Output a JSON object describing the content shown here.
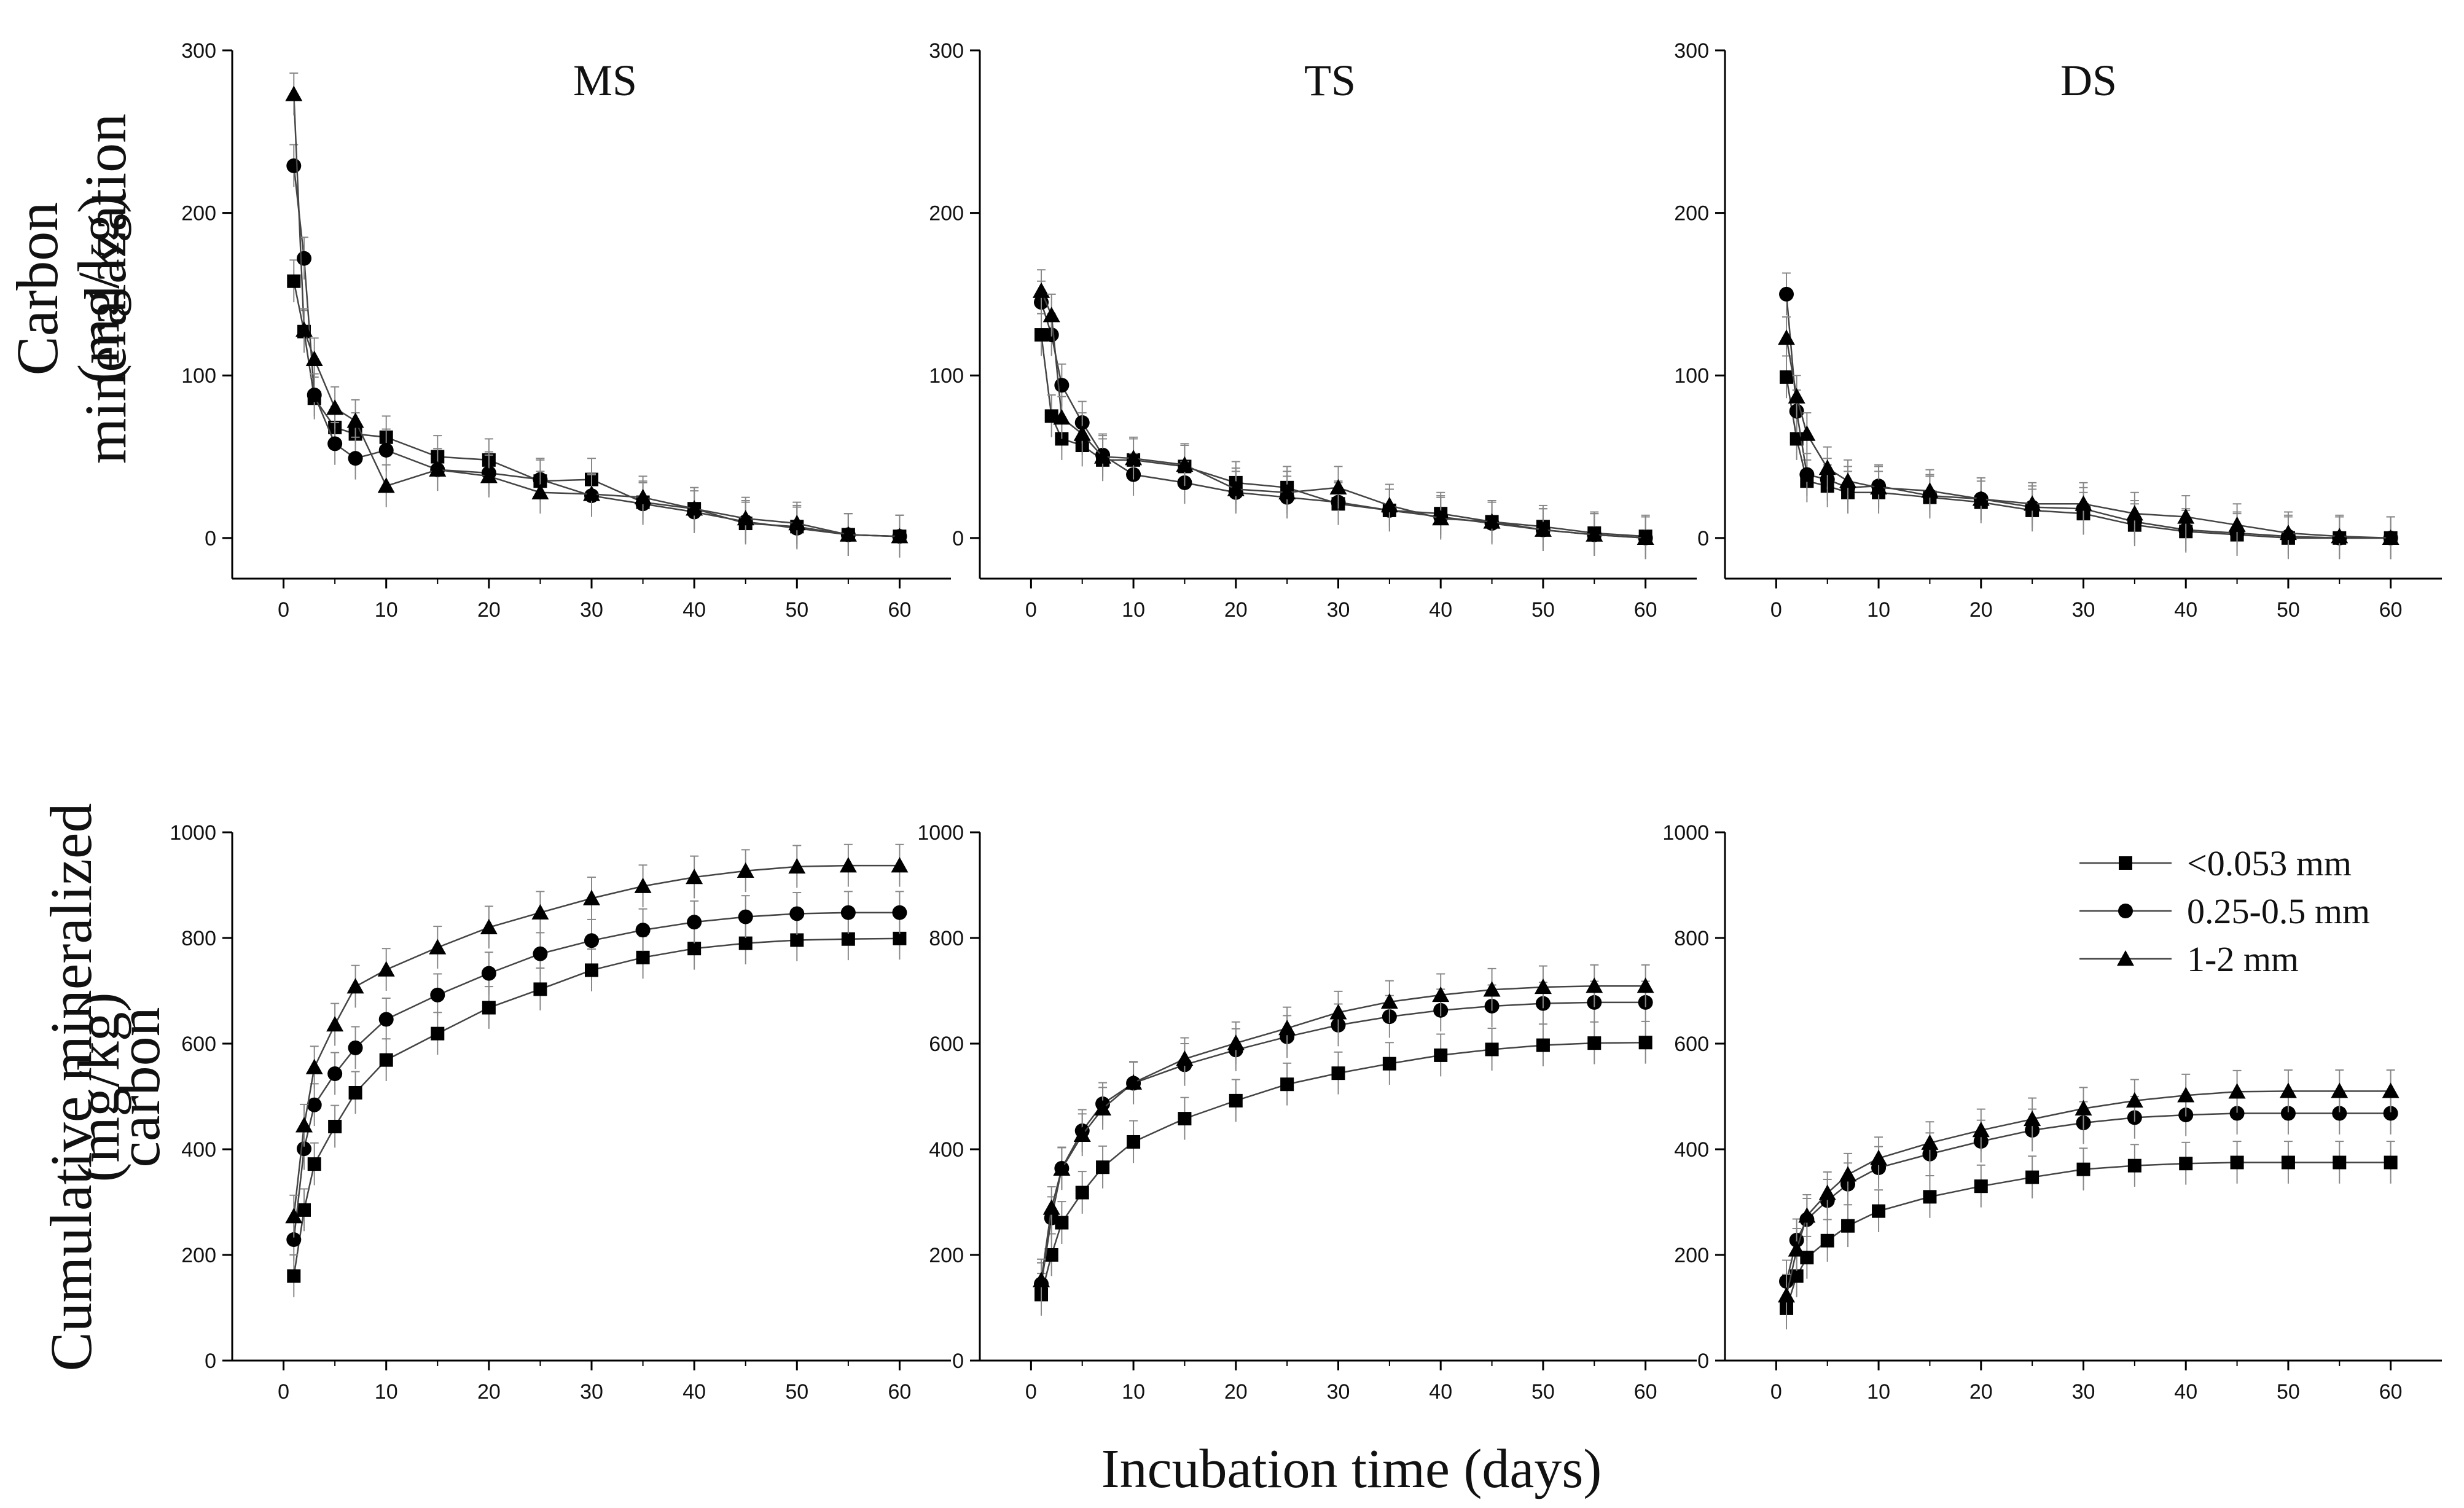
{
  "ylabel_top": [
    "Carbon mineralazation",
    "(mg/kg)"
  ],
  "ylabel_bottom": [
    "Cumulative mineralized carbon",
    "(mg/kg)"
  ],
  "xlabel": "Incubation time (days)",
  "legend": [
    "<0.053 mm",
    "0.25-0.5 mm",
    "1-2 mm"
  ],
  "chart_data": [
    {
      "type": "line",
      "title": "MS",
      "xlabel": "",
      "ylabel": "",
      "x": [
        1,
        2,
        3,
        5,
        7,
        10,
        15,
        20,
        25,
        30,
        35,
        40,
        45,
        50,
        55,
        60
      ],
      "xlim": [
        -5,
        65
      ],
      "ylim": [
        -25,
        300
      ],
      "xticks": [
        0,
        10,
        20,
        30,
        40,
        50,
        60
      ],
      "yticks": [
        0,
        100,
        200,
        300
      ],
      "series": [
        {
          "name": "<0.053 mm",
          "marker": "square",
          "values": [
            158,
            127,
            86,
            68,
            64,
            62,
            50,
            48,
            35,
            36,
            22,
            18,
            9,
            7,
            2,
            1
          ]
        },
        {
          "name": "0.25-0.5 mm",
          "marker": "circle",
          "values": [
            229,
            172,
            88,
            58,
            49,
            54,
            42,
            40,
            36,
            26,
            21,
            16,
            10,
            6,
            2,
            1
          ]
        },
        {
          "name": "1-2 mm",
          "marker": "triangle",
          "values": [
            273,
            128,
            110,
            80,
            72,
            32,
            42,
            38,
            28,
            27,
            25,
            18,
            12,
            9,
            2,
            1
          ]
        }
      ]
    },
    {
      "type": "line",
      "title": "TS",
      "xlabel": "",
      "ylabel": "",
      "x": [
        1,
        2,
        3,
        5,
        7,
        10,
        15,
        20,
        25,
        30,
        35,
        40,
        45,
        50,
        55,
        60
      ],
      "xlim": [
        -5,
        65
      ],
      "ylim": [
        -25,
        300
      ],
      "xticks": [
        0,
        10,
        20,
        30,
        40,
        50,
        60
      ],
      "yticks": [
        0,
        100,
        200,
        300
      ],
      "series": [
        {
          "name": "<0.053 mm",
          "marker": "square",
          "values": [
            125,
            75,
            61,
            57,
            48,
            48,
            44,
            34,
            31,
            21,
            17,
            15,
            10,
            7,
            3,
            1
          ]
        },
        {
          "name": "0.25-0.5 mm",
          "marker": "circle",
          "values": [
            145,
            125,
            94,
            71,
            51,
            39,
            34,
            28,
            25,
            22,
            17,
            13,
            9,
            5,
            2,
            0
          ]
        },
        {
          "name": "1-2 mm",
          "marker": "triangle",
          "values": [
            152,
            137,
            74,
            64,
            50,
            49,
            45,
            30,
            28,
            31,
            20,
            12,
            10,
            5,
            2,
            0
          ]
        }
      ]
    },
    {
      "type": "line",
      "title": "DS",
      "xlabel": "",
      "ylabel": "",
      "x": [
        1,
        2,
        3,
        5,
        7,
        10,
        15,
        20,
        25,
        30,
        35,
        40,
        45,
        50,
        55,
        60
      ],
      "xlim": [
        -5,
        65
      ],
      "ylim": [
        -25,
        300
      ],
      "xticks": [
        0,
        10,
        20,
        30,
        40,
        50,
        60
      ],
      "yticks": [
        0,
        100,
        200,
        300
      ],
      "series": [
        {
          "name": "<0.053 mm",
          "marker": "square",
          "values": [
            99,
            61,
            35,
            32,
            28,
            28,
            25,
            22,
            17,
            15,
            8,
            4,
            2,
            0,
            0,
            0
          ]
        },
        {
          "name": "0.25-0.5 mm",
          "marker": "circle",
          "values": [
            150,
            78,
            39,
            36,
            31,
            32,
            26,
            24,
            19,
            18,
            10,
            5,
            3,
            1,
            0,
            0
          ]
        },
        {
          "name": "1-2 mm",
          "marker": "triangle",
          "values": [
            123,
            87,
            64,
            43,
            35,
            31,
            29,
            24,
            21,
            21,
            15,
            13,
            8,
            3,
            1,
            0
          ]
        }
      ]
    },
    {
      "type": "line",
      "title": "",
      "xlabel": "",
      "ylabel": "",
      "x": [
        1,
        2,
        3,
        5,
        7,
        10,
        15,
        20,
        25,
        30,
        35,
        40,
        45,
        50,
        55,
        60
      ],
      "xlim": [
        -5,
        65
      ],
      "ylim": [
        0,
        1000
      ],
      "xticks": [
        0,
        10,
        20,
        30,
        40,
        50,
        60
      ],
      "yticks": [
        0,
        200,
        400,
        600,
        800,
        1000
      ],
      "series": [
        {
          "name": "<0.053 mm",
          "marker": "square",
          "values": [
            160,
            285,
            372,
            443,
            507,
            569,
            619,
            668,
            703,
            739,
            763,
            780,
            790,
            796,
            798,
            799
          ]
        },
        {
          "name": "0.25-0.5 mm",
          "marker": "circle",
          "values": [
            229,
            401,
            484,
            543,
            592,
            646,
            692,
            733,
            770,
            795,
            815,
            830,
            840,
            846,
            848,
            848
          ]
        },
        {
          "name": "1-2 mm",
          "marker": "triangle",
          "values": [
            273,
            445,
            555,
            636,
            708,
            740,
            782,
            820,
            848,
            875,
            898,
            915,
            927,
            935,
            937,
            937
          ]
        }
      ]
    },
    {
      "type": "line",
      "title": "",
      "xlabel": "",
      "ylabel": "",
      "x": [
        1,
        2,
        3,
        5,
        7,
        10,
        15,
        20,
        25,
        30,
        35,
        40,
        45,
        50,
        55,
        60
      ],
      "xlim": [
        -5,
        65
      ],
      "ylim": [
        0,
        1000
      ],
      "xticks": [
        0,
        10,
        20,
        30,
        40,
        50,
        60
      ],
      "yticks": [
        0,
        200,
        400,
        600,
        800,
        1000
      ],
      "series": [
        {
          "name": "<0.053 mm",
          "marker": "square",
          "values": [
            125,
            200,
            261,
            318,
            366,
            414,
            458,
            492,
            523,
            544,
            562,
            578,
            589,
            597,
            601,
            602
          ]
        },
        {
          "name": "0.25-0.5 mm",
          "marker": "circle",
          "values": [
            145,
            270,
            364,
            435,
            486,
            525,
            560,
            588,
            613,
            635,
            651,
            663,
            671,
            676,
            678,
            678
          ]
        },
        {
          "name": "1-2 mm",
          "marker": "triangle",
          "values": [
            152,
            289,
            363,
            427,
            477,
            526,
            571,
            601,
            629,
            659,
            679,
            692,
            702,
            707,
            709,
            709
          ]
        }
      ]
    },
    {
      "type": "line",
      "title": "",
      "xlabel": "",
      "ylabel": "",
      "x": [
        1,
        2,
        3,
        5,
        7,
        10,
        15,
        20,
        25,
        30,
        35,
        40,
        45,
        50,
        55,
        60
      ],
      "xlim": [
        -5,
        65
      ],
      "ylim": [
        0,
        1000
      ],
      "xticks": [
        0,
        10,
        20,
        30,
        40,
        50,
        60
      ],
      "yticks": [
        0,
        200,
        400,
        600,
        800,
        1000
      ],
      "series": [
        {
          "name": "<0.053 mm",
          "marker": "square",
          "values": [
            99,
            160,
            195,
            227,
            255,
            283,
            310,
            330,
            347,
            362,
            369,
            373,
            375,
            375,
            375,
            375
          ]
        },
        {
          "name": "0.25-0.5 mm",
          "marker": "circle",
          "values": [
            150,
            228,
            267,
            303,
            334,
            365,
            391,
            415,
            436,
            450,
            460,
            465,
            468,
            468,
            468,
            468
          ]
        },
        {
          "name": "1-2 mm",
          "marker": "triangle",
          "values": [
            123,
            210,
            274,
            317,
            352,
            383,
            412,
            436,
            457,
            477,
            492,
            502,
            509,
            510,
            510,
            510
          ]
        }
      ]
    }
  ]
}
